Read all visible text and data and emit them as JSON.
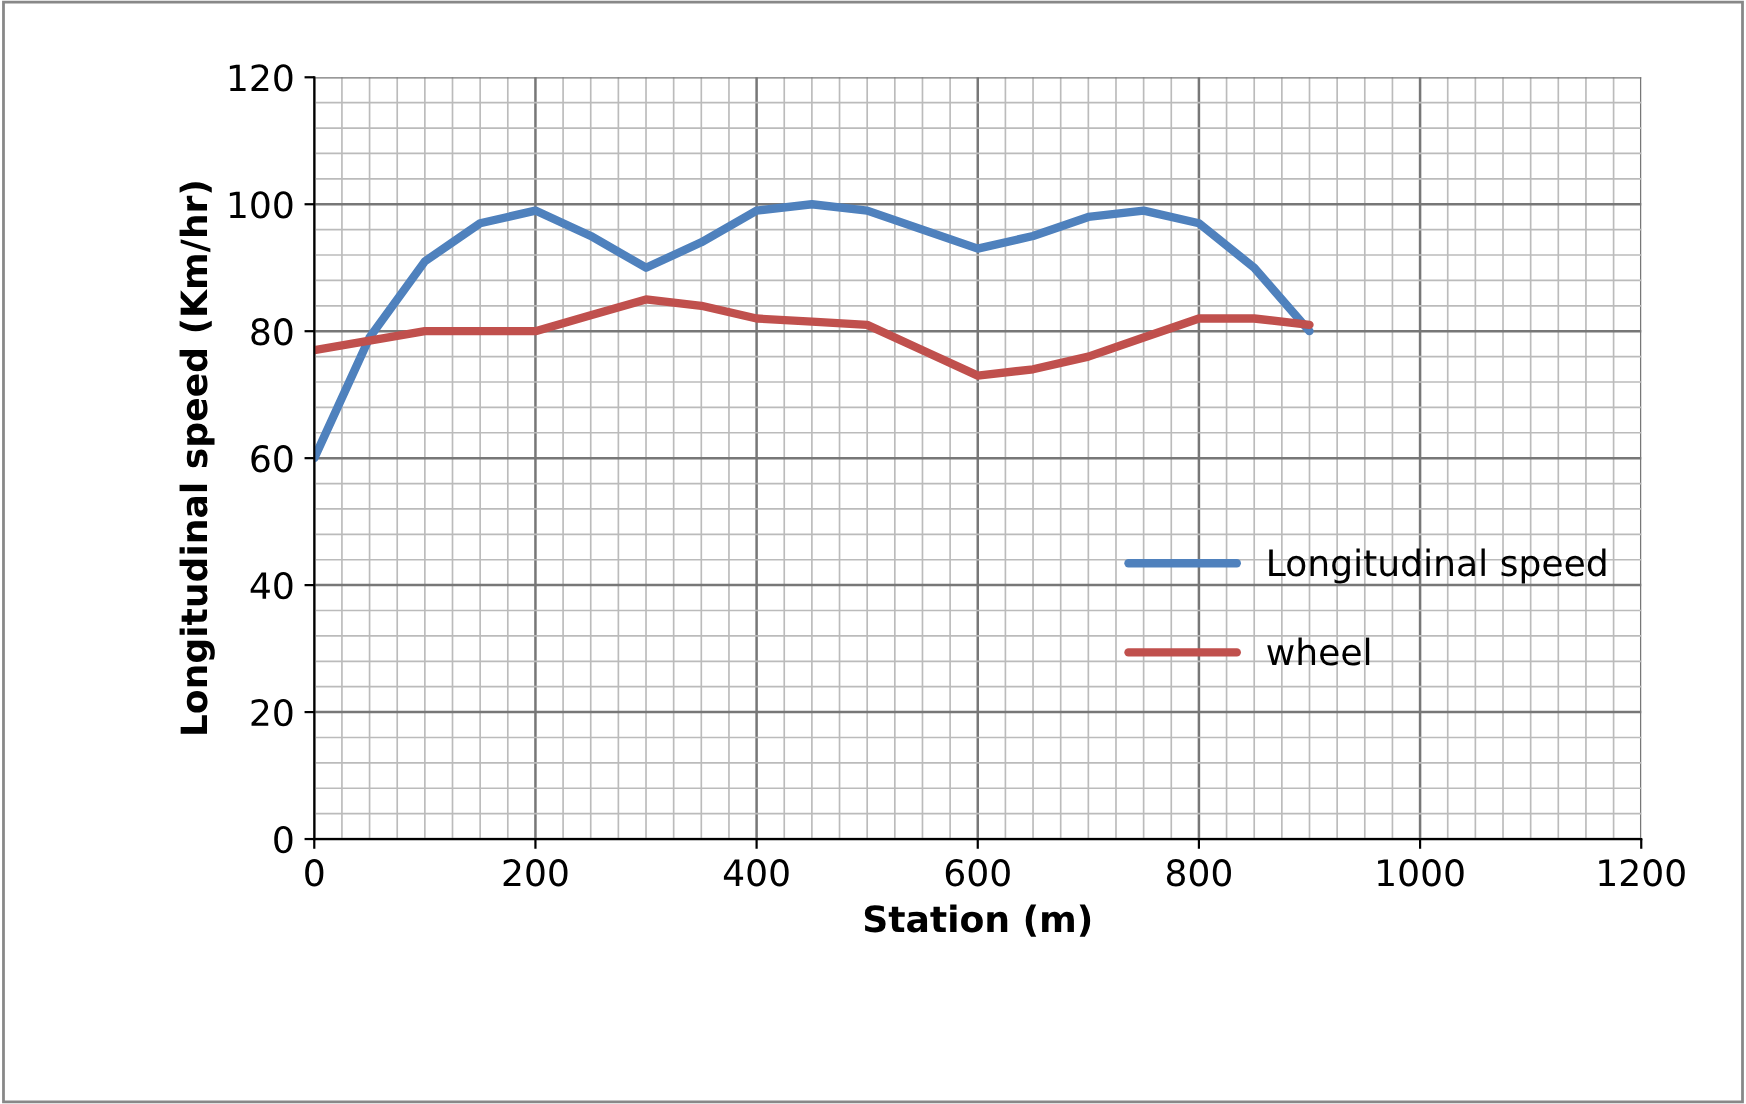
{
  "chart_data": {
    "type": "line",
    "xlabel": "Station (m)",
    "ylabel": "Longitudinal speed (Km/hr)",
    "x": [
      0,
      50,
      100,
      150,
      200,
      250,
      300,
      350,
      400,
      450,
      500,
      550,
      600,
      650,
      700,
      750,
      800,
      850,
      900
    ],
    "series": [
      {
        "name": "Longitudinal speed",
        "color": "#4f81bd",
        "values": [
          60,
          79,
          91,
          97,
          99,
          95,
          90,
          94,
          99,
          100,
          99,
          96,
          93,
          95,
          98,
          99,
          97,
          90,
          80
        ]
      },
      {
        "name": "wheel",
        "color": "#c0504d",
        "values": [
          77,
          78.5,
          80,
          80,
          80,
          82.5,
          85,
          84,
          82,
          81.5,
          81,
          77,
          73,
          74,
          76,
          79,
          82,
          82,
          81
        ]
      }
    ],
    "xlim": [
      0,
      1200
    ],
    "ylim": [
      0,
      120
    ],
    "xticks": [
      0,
      200,
      400,
      600,
      800,
      1000,
      1200
    ],
    "yticks": [
      0,
      20,
      40,
      60,
      80,
      100,
      120
    ],
    "grid": true,
    "legend": "right",
    "marker": "none",
    "line_style": "solid"
  }
}
